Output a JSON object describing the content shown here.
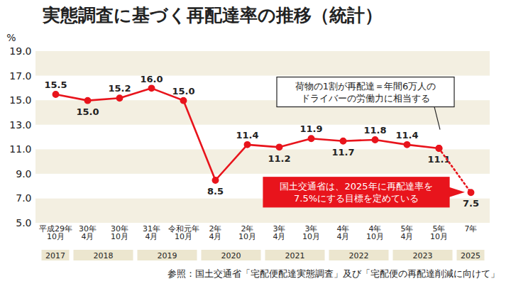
{
  "chart_data": {
    "type": "line",
    "title": "実態調査に基づく再配達率の推移（統計）",
    "y_label": "%",
    "source": "参照：国土交通省「宅配便配達実態調査」及び「宅配便の再配達削減に向けて」",
    "categories": [
      "平成29年\n10月",
      "30年\n4月",
      "30年\n10月",
      "31年\n4月",
      "令和元年\n10月",
      "2年\n4月",
      "2年\n10月",
      "3年\n4月",
      "3年\n10月",
      "4年\n4月",
      "4年\n10月",
      "5年\n4月",
      "5年\n10月",
      "7年"
    ],
    "year_groups": [
      {
        "label": "2017",
        "categories": [
          "平成29年\n10月"
        ]
      },
      {
        "label": "2018",
        "categories": [
          "30年\n4月",
          "30年\n10月"
        ]
      },
      {
        "label": "2019",
        "categories": [
          "31年\n4月",
          "令和元年\n10月"
        ]
      },
      {
        "label": "2020",
        "categories": [
          "2年\n4月",
          "2年\n10月"
        ]
      },
      {
        "label": "2021",
        "categories": [
          "3年\n4月",
          "3年\n10月"
        ]
      },
      {
        "label": "2022",
        "categories": [
          "4年\n4月",
          "4年\n10月"
        ]
      },
      {
        "label": "2023",
        "categories": [
          "5年\n4月",
          "5年\n10月"
        ]
      },
      {
        "label": "2025",
        "categories": [
          "7年"
        ]
      }
    ],
    "series": [
      {
        "color": "#e8141c",
        "line_style": "solid",
        "marker": "circle",
        "values": [
          15.5,
          15.0,
          15.2,
          16.0,
          15.0,
          8.5,
          11.4,
          11.2,
          11.9,
          11.7,
          11.8,
          11.4,
          11.1,
          null
        ],
        "value_labels": [
          "15.5",
          "15.0",
          "15.2",
          "16.0",
          "15.0",
          "8.5",
          "11.4",
          "11.2",
          "11.9",
          "11.7",
          "11.8",
          "11.4",
          "11.1",
          null
        ]
      },
      {
        "color": "#e8141c",
        "line_style": "dotted",
        "marker": "circle",
        "values": [
          null,
          null,
          null,
          null,
          null,
          null,
          null,
          null,
          null,
          null,
          null,
          null,
          11.1,
          7.5
        ],
        "value_labels": [
          null,
          null,
          null,
          null,
          null,
          null,
          null,
          null,
          null,
          null,
          null,
          null,
          null,
          "7.5"
        ]
      }
    ],
    "ylim": [
      5,
      19
    ],
    "yticks": [
      {
        "value": 5,
        "label": "5.0"
      },
      {
        "value": 7,
        "label": "7.0"
      },
      {
        "value": 9,
        "label": "9.0"
      },
      {
        "value": 11,
        "label": "11.0"
      },
      {
        "value": 13,
        "label": "13.0"
      },
      {
        "value": 15,
        "label": "15.0"
      },
      {
        "value": 17,
        "label": "17.0"
      },
      {
        "value": 19,
        "label": "19.0"
      }
    ],
    "grid": true,
    "data_labels": true,
    "annotations": [
      {
        "text": "荷物の1割が再配達＝年間6万人の\nドライバーの労働力に相当する",
        "x": "5年\n10月",
        "color": "#ffffff"
      },
      {
        "text": "国土交通省は、2025年に再配達率を\n7.5%にする目標を定めている",
        "x": "7年",
        "color": "#e8141c"
      }
    ]
  }
}
